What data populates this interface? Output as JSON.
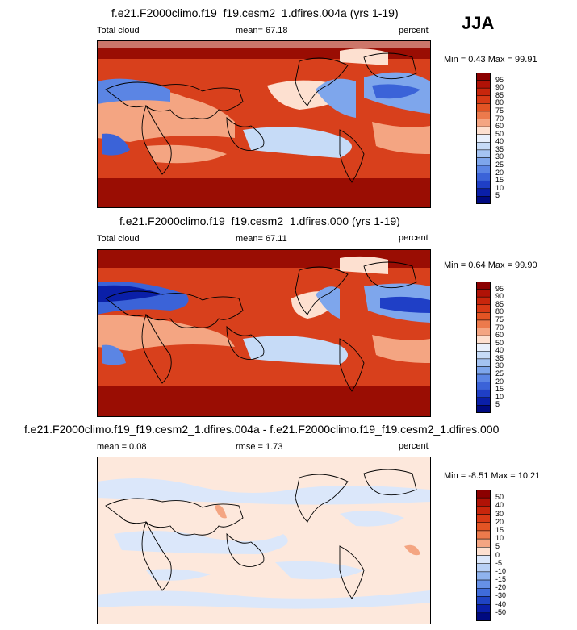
{
  "season": "JJA",
  "panels": [
    {
      "title": "f.e21.F2000climo.f19_f19.cesm2_1.dfires.004a (yrs 1-19)",
      "left_label": "Total cloud",
      "mid_label": "mean=  67.18",
      "right_label": "percent",
      "minmax": "Min =   0.43 Max =  99.91",
      "levels": [
        "95",
        "90",
        "85",
        "80",
        "75",
        "70",
        "60",
        "50",
        "40",
        "35",
        "30",
        "25",
        "20",
        "15",
        "10",
        "5"
      ],
      "colors": [
        "#8b0000",
        "#b01206",
        "#c8260c",
        "#d83a16",
        "#e35424",
        "#ec7a4c",
        "#f4a582",
        "#fde0d0",
        "#e8f0fc",
        "#c6dbf7",
        "#a4c3f2",
        "#7ea6ec",
        "#5b85e4",
        "#3b63d8",
        "#1f3fc6",
        "#0a1fa8",
        "#000a80"
      ]
    },
    {
      "title": "f.e21.F2000climo.f19_f19.cesm2_1.dfires.000 (yrs 1-19)",
      "left_label": "Total cloud",
      "mid_label": "mean=  67.11",
      "right_label": "percent",
      "minmax": "Min =   0.64 Max =  99.90",
      "levels": [
        "95",
        "90",
        "85",
        "80",
        "75",
        "70",
        "60",
        "50",
        "40",
        "35",
        "30",
        "25",
        "20",
        "15",
        "10",
        "5"
      ],
      "colors": [
        "#8b0000",
        "#b01206",
        "#c8260c",
        "#d83a16",
        "#e35424",
        "#ec7a4c",
        "#f4a582",
        "#fde0d0",
        "#e8f0fc",
        "#c6dbf7",
        "#a4c3f2",
        "#7ea6ec",
        "#5b85e4",
        "#3b63d8",
        "#1f3fc6",
        "#0a1fa8",
        "#000a80"
      ]
    },
    {
      "title": "f.e21.F2000climo.f19_f19.cesm2_1.dfires.004a - f.e21.F2000climo.f19_f19.cesm2_1.dfires.000",
      "left_label": "mean =   0.08",
      "mid_label": "rmse =   1.73",
      "right_label": "percent",
      "minmax": "Min =  -8.51 Max =  10.21",
      "levels": [
        "50",
        "40",
        "30",
        "20",
        "15",
        "10",
        "5",
        "0",
        "-5",
        "-10",
        "-15",
        "-20",
        "-30",
        "-40",
        "-50"
      ],
      "colors": [
        "#8b0000",
        "#b01206",
        "#c8260c",
        "#d83a16",
        "#e35424",
        "#ec7a4c",
        "#f4a582",
        "#fde0d0",
        "#dbe7fa",
        "#b8d0f5",
        "#8fb3ee",
        "#6690e6",
        "#3f6cda",
        "#1f44c4",
        "#0a1fa8",
        "#000a80"
      ]
    }
  ]
}
